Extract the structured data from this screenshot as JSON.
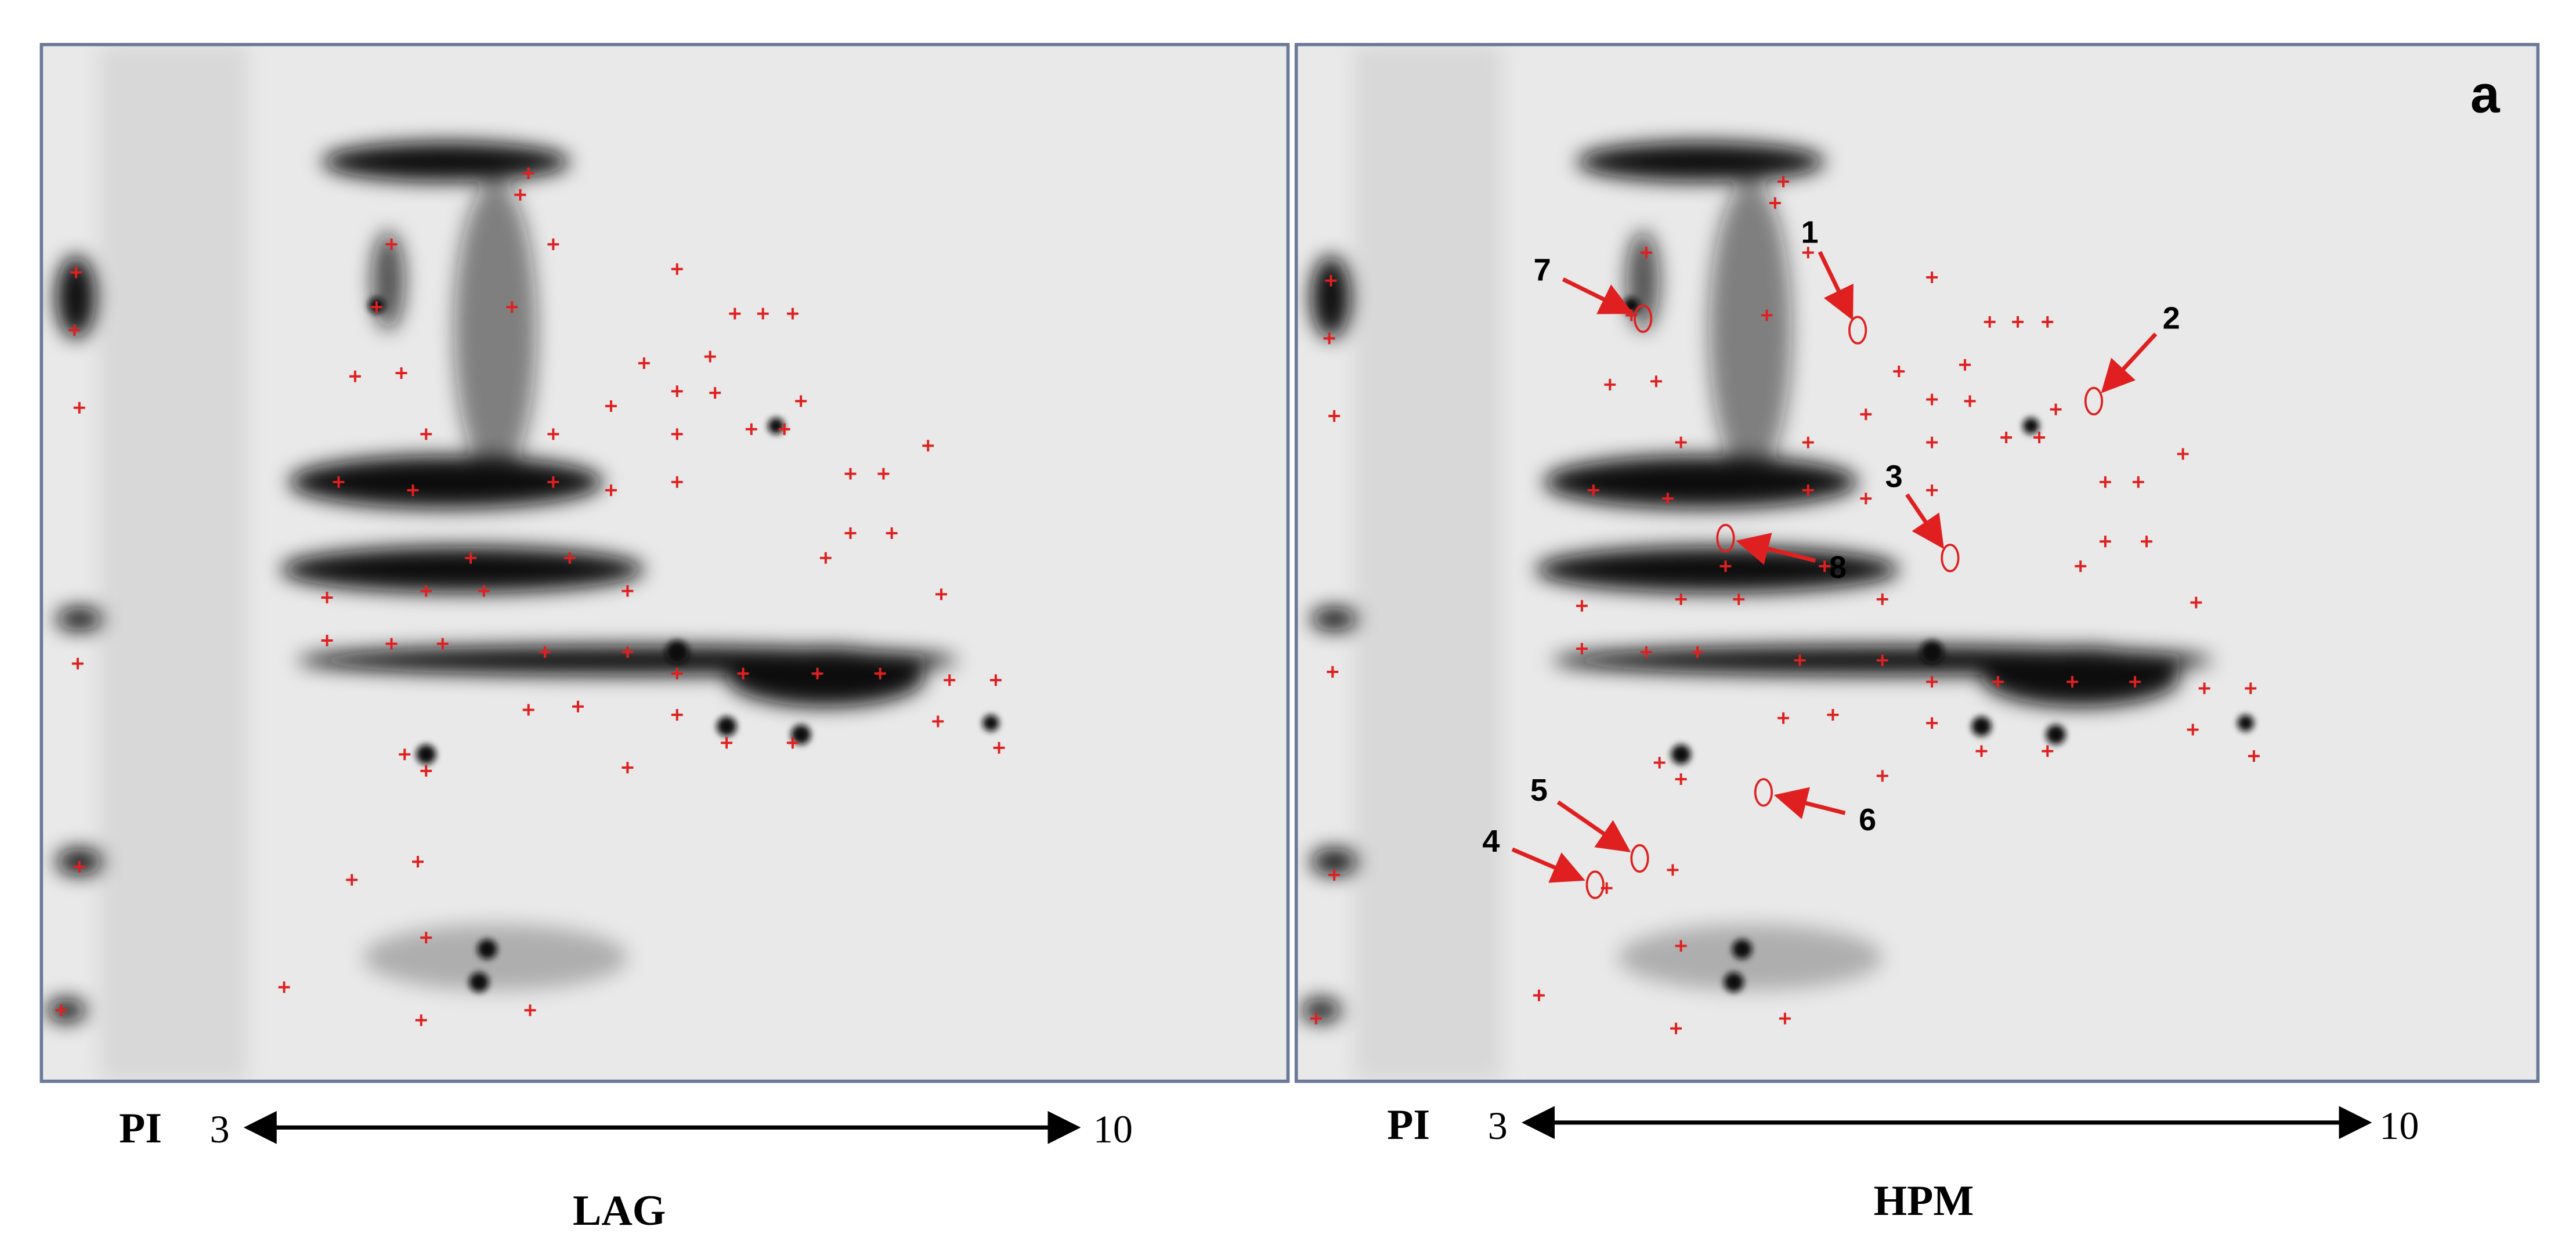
{
  "figure_label": "a",
  "panels": [
    {
      "name": "LAG",
      "axis_label": "PI",
      "axis_start": 3,
      "axis_end": 10
    },
    {
      "name": "HPM",
      "axis_label": "PI",
      "axis_start": 3,
      "axis_end": 10,
      "annotations": [
        "1",
        "2",
        "3",
        "4",
        "5",
        "6",
        "7",
        "8"
      ]
    }
  ]
}
